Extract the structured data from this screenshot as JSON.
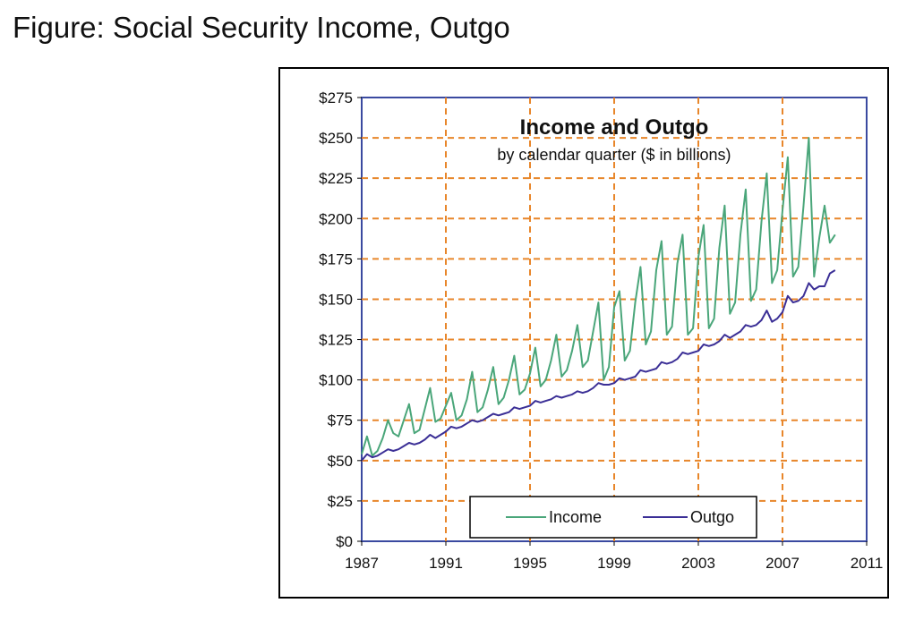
{
  "page": {
    "title": "Figure: Social Security Income, Outgo"
  },
  "chart_data": {
    "type": "line",
    "title": "Income and Outgo",
    "subtitle": "by calendar quarter ($ in billions)",
    "xlabel": "",
    "ylabel": "",
    "xlim": [
      1987,
      2011
    ],
    "ylim": [
      0,
      275
    ],
    "x_ticks": [
      1987,
      1991,
      1995,
      1999,
      2003,
      2007,
      2011
    ],
    "x_tick_labels": [
      "1987",
      "1991",
      "1995",
      "1999",
      "2003",
      "2007",
      "2011"
    ],
    "y_ticks": [
      0,
      25,
      50,
      75,
      100,
      125,
      150,
      175,
      200,
      225,
      250,
      275
    ],
    "y_tick_labels": [
      "$0",
      "$25",
      "$50",
      "$75",
      "$100",
      "$125",
      "$150",
      "$175",
      "$200",
      "$225",
      "$250",
      "$275"
    ],
    "grid": true,
    "legend": "bottom-center",
    "colors": {
      "plot_border": "#3a4aa0",
      "grid": "#e8862a",
      "income": "#4aa67a",
      "outgo": "#3b2f96"
    },
    "series": [
      {
        "name": "Income",
        "color": "#4aa67a",
        "x": [
          1987.0,
          1987.25,
          1987.5,
          1987.75,
          1988.0,
          1988.25,
          1988.5,
          1988.75,
          1989.0,
          1989.25,
          1989.5,
          1989.75,
          1990.0,
          1990.25,
          1990.5,
          1990.75,
          1991.0,
          1991.25,
          1991.5,
          1991.75,
          1992.0,
          1992.25,
          1992.5,
          1992.75,
          1993.0,
          1993.25,
          1993.5,
          1993.75,
          1994.0,
          1994.25,
          1994.5,
          1994.75,
          1995.0,
          1995.25,
          1995.5,
          1995.75,
          1996.0,
          1996.25,
          1996.5,
          1996.75,
          1997.0,
          1997.25,
          1997.5,
          1997.75,
          1998.0,
          1998.25,
          1998.5,
          1998.75,
          1999.0,
          1999.25,
          1999.5,
          1999.75,
          2000.0,
          2000.25,
          2000.5,
          2000.75,
          2001.0,
          2001.25,
          2001.5,
          2001.75,
          2002.0,
          2002.25,
          2002.5,
          2002.75,
          2003.0,
          2003.25,
          2003.5,
          2003.75,
          2004.0,
          2004.25,
          2004.5,
          2004.75,
          2005.0,
          2005.25,
          2005.5,
          2005.75,
          2006.0,
          2006.25,
          2006.5,
          2006.75,
          2007.0,
          2007.25,
          2007.5,
          2007.75,
          2008.0,
          2008.25,
          2008.5,
          2008.75,
          2009.0,
          2009.25,
          2009.5
        ],
        "values": [
          54,
          65,
          53,
          56,
          64,
          75,
          67,
          65,
          75,
          85,
          67,
          69,
          82,
          95,
          74,
          76,
          84,
          92,
          75,
          78,
          88,
          105,
          80,
          83,
          94,
          108,
          85,
          89,
          100,
          115,
          91,
          94,
          104,
          120,
          96,
          100,
          112,
          128,
          102,
          106,
          118,
          134,
          108,
          112,
          130,
          148,
          100,
          108,
          145,
          155,
          112,
          118,
          148,
          170,
          122,
          130,
          168,
          186,
          128,
          133,
          172,
          190,
          128,
          132,
          176,
          196,
          132,
          138,
          182,
          208,
          141,
          148,
          190,
          218,
          149,
          156,
          198,
          228,
          160,
          168,
          205,
          238,
          164,
          170,
          208,
          250,
          164,
          188,
          208,
          185,
          190
        ],
        "values_note": ""
      },
      {
        "name": "Outgo",
        "color": "#3b2f96",
        "x": [
          1987.0,
          1987.25,
          1987.5,
          1987.75,
          1988.0,
          1988.25,
          1988.5,
          1988.75,
          1989.0,
          1989.25,
          1989.5,
          1989.75,
          1990.0,
          1990.25,
          1990.5,
          1990.75,
          1991.0,
          1991.25,
          1991.5,
          1991.75,
          1992.0,
          1992.25,
          1992.5,
          1992.75,
          1993.0,
          1993.25,
          1993.5,
          1993.75,
          1994.0,
          1994.25,
          1994.5,
          1994.75,
          1995.0,
          1995.25,
          1995.5,
          1995.75,
          1996.0,
          1996.25,
          1996.5,
          1996.75,
          1997.0,
          1997.25,
          1997.5,
          1997.75,
          1998.0,
          1998.25,
          1998.5,
          1998.75,
          1999.0,
          1999.25,
          1999.5,
          1999.75,
          2000.0,
          2000.25,
          2000.5,
          2000.75,
          2001.0,
          2001.25,
          2001.5,
          2001.75,
          2002.0,
          2002.25,
          2002.5,
          2002.75,
          2003.0,
          2003.25,
          2003.5,
          2003.75,
          2004.0,
          2004.25,
          2004.5,
          2004.75,
          2005.0,
          2005.25,
          2005.5,
          2005.75,
          2006.0,
          2006.25,
          2006.5,
          2006.75,
          2007.0,
          2007.25,
          2007.5,
          2007.75,
          2008.0,
          2008.25,
          2008.5,
          2008.75,
          2009.0,
          2009.25,
          2009.5
        ],
        "values": [
          50,
          54,
          52,
          53,
          55,
          57,
          56,
          57,
          59,
          61,
          60,
          61,
          63,
          66,
          64,
          66,
          68,
          71,
          70,
          71,
          73,
          75,
          74,
          75,
          77,
          79,
          78,
          79,
          80,
          83,
          82,
          83,
          84,
          87,
          86,
          87,
          88,
          90,
          89,
          90,
          91,
          93,
          92,
          93,
          95,
          98,
          97,
          97,
          98,
          101,
          100,
          101,
          102,
          106,
          105,
          106,
          107,
          111,
          110,
          111,
          113,
          117,
          116,
          117,
          118,
          122,
          121,
          122,
          124,
          128,
          126,
          128,
          130,
          134,
          133,
          134,
          137,
          143,
          136,
          138,
          142,
          152,
          148,
          149,
          152,
          160,
          156,
          158,
          158,
          166,
          168
        ]
      }
    ]
  }
}
